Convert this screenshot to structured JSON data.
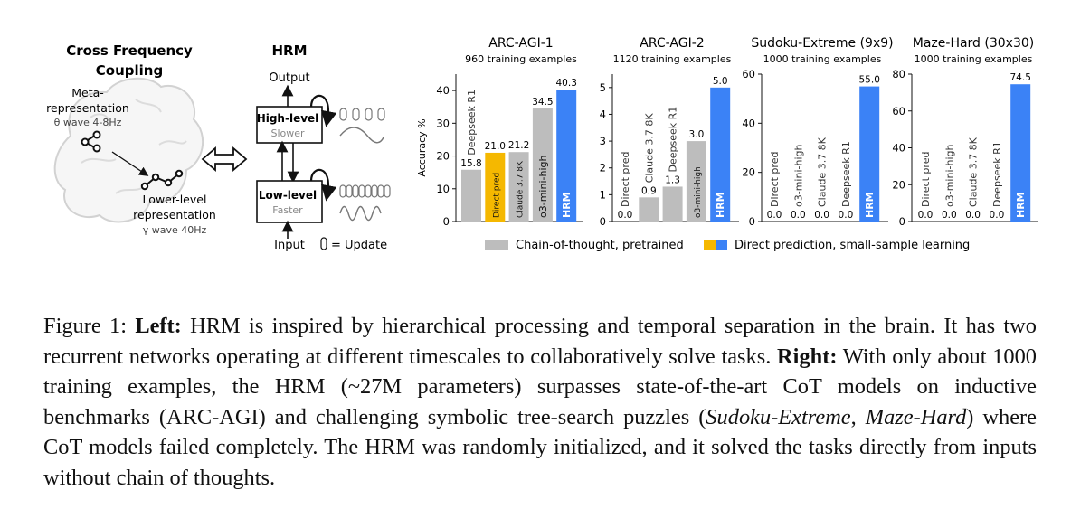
{
  "left_panel": {
    "cfc_title": [
      "Cross Frequency",
      "Coupling"
    ],
    "meta_label": [
      "Meta-",
      "representation"
    ],
    "theta_label": "θ wave 4-8Hz",
    "lower_label": [
      "Lower-level",
      "representation"
    ],
    "gamma_label": "γ wave 40Hz",
    "hrm_title": "HRM",
    "output_label": "Output",
    "input_label": "Input",
    "high_module": {
      "title": "High-level",
      "sub": "Slower"
    },
    "low_module": {
      "title": "Low-level",
      "sub": "Faster"
    },
    "update_legend": "= Update"
  },
  "chart_data": [
    {
      "type": "bar",
      "title": "ARC-AGI-1",
      "subtitle": "960 training examples",
      "ylabel": "Accuracy %",
      "ylim": [
        0,
        45
      ],
      "yticks": [
        0,
        10,
        20,
        30,
        40
      ],
      "categories": [
        "Deepseek R1",
        "Direct pred",
        "Claude 3.7 8K",
        "o3-mini-high",
        "HRM"
      ],
      "values": [
        15.8,
        21.0,
        21.2,
        34.5,
        40.3
      ],
      "value_labels": [
        "15.8",
        "21.0",
        "21.2",
        "34.5",
        "40.3"
      ],
      "groups": [
        "cot",
        "direct_small",
        "cot",
        "cot",
        "hrm"
      ]
    },
    {
      "type": "bar",
      "title": "ARC-AGI-2",
      "subtitle": "1120 training examples",
      "ylim": [
        0,
        5.5
      ],
      "yticks": [
        0,
        1,
        2,
        3,
        4,
        5
      ],
      "categories": [
        "Direct pred",
        "Claude 3.7 8K",
        "Deepseek R1",
        "o3-mini-high",
        "HRM"
      ],
      "values": [
        0.0,
        0.9,
        1.3,
        3.0,
        5.0
      ],
      "value_labels": [
        "0.0",
        "0.9",
        "1.3",
        "3.0",
        "5.0"
      ],
      "groups": [
        "direct_small",
        "cot",
        "cot",
        "cot",
        "hrm"
      ]
    },
    {
      "type": "bar",
      "title": "Sudoku-Extreme (9x9)",
      "subtitle": "1000 training examples",
      "ylim": [
        0,
        60
      ],
      "yticks": [
        0,
        20,
        40,
        60
      ],
      "categories": [
        "Direct pred",
        "o3-mini-high",
        "Claude 3.7 8K",
        "Deepseek R1",
        "HRM"
      ],
      "values": [
        0.0,
        0.0,
        0.0,
        0.0,
        55.0
      ],
      "value_labels": [
        "0.0",
        "0.0",
        "0.0",
        "0.0",
        "55.0"
      ],
      "groups": [
        "direct_small",
        "cot",
        "cot",
        "cot",
        "hrm"
      ]
    },
    {
      "type": "bar",
      "title": "Maze-Hard (30x30)",
      "subtitle": "1000 training examples",
      "ylim": [
        0,
        80
      ],
      "yticks": [
        0,
        20,
        40,
        60,
        80
      ],
      "categories": [
        "Direct pred",
        "o3-mini-high",
        "Claude 3.7 8K",
        "Deepseek R1",
        "HRM"
      ],
      "values": [
        0.0,
        0.0,
        0.0,
        0.0,
        74.5
      ],
      "value_labels": [
        "0.0",
        "0.0",
        "0.0",
        "0.0",
        "74.5"
      ],
      "groups": [
        "direct_small",
        "cot",
        "cot",
        "cot",
        "hrm"
      ]
    }
  ],
  "legend": {
    "cot_label": "Chain-of-thought, pretrained",
    "direct_label": "Direct prediction, small-sample learning"
  },
  "colors": {
    "cot": "#bdbdbd",
    "direct_small": "#f5b800",
    "hrm": "#3b82f6"
  },
  "caption": {
    "figure_label": "Figure 1: ",
    "left_heading": "Left:",
    "left_text": " HRM is inspired by hierarchical processing and temporal separation in the brain. It has two recurrent networks operating at different timescales to collaboratively solve tasks. ",
    "right_heading": "Right:",
    "right_text_1": " With only about 1000 training examples, the HRM (~27M parameters) surpasses state-of-the-art CoT models on inductive benchmarks (ARC-AGI) and challenging symbolic tree-search puzzles (",
    "sudoku_italic": "Sudoku-Extreme",
    "sep": ", ",
    "maze_italic": "Maze-Hard",
    "right_text_2": ") where CoT models failed completely.  The HRM was randomly initialized, and it solved the tasks directly from inputs without chain of thoughts."
  }
}
